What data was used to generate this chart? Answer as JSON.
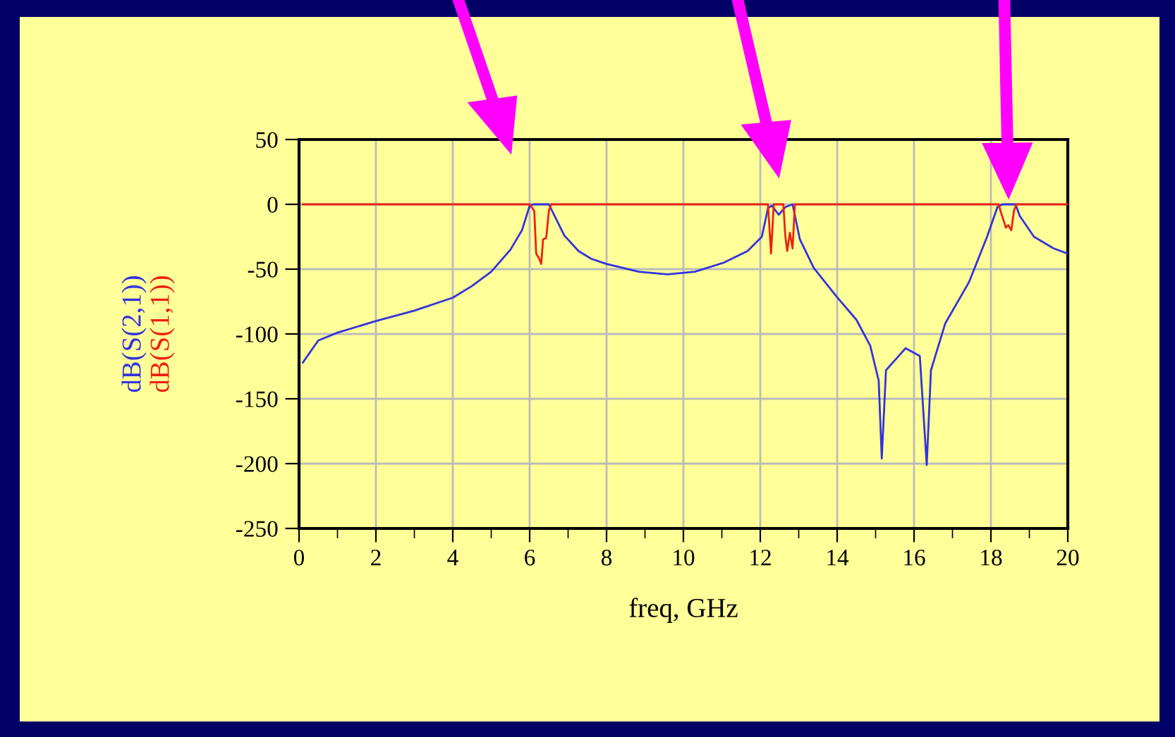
{
  "chart_data": {
    "type": "line",
    "xlabel": "freq, GHz",
    "xlim": [
      0,
      20
    ],
    "ylim": [
      -250,
      50
    ],
    "xticks": [
      0,
      {
        "value": 1,
        "label": null
      },
      2,
      {
        "value": 3,
        "label": null
      },
      4,
      {
        "value": 5,
        "label": null
      },
      6,
      {
        "value": 7,
        "label": null
      },
      8,
      {
        "value": 9,
        "label": null
      },
      10,
      {
        "value": 11,
        "label": null
      },
      12,
      {
        "value": 13,
        "label": null
      },
      14,
      {
        "value": 15,
        "label": null
      },
      16,
      {
        "value": 17,
        "label": null
      },
      18,
      {
        "value": 19,
        "label": null
      },
      20
    ],
    "yticks": [
      -250,
      -200,
      -150,
      -100,
      -50,
      0,
      50
    ],
    "grid": true,
    "legend": false,
    "marker": "none",
    "line_style": "solid",
    "series": [
      {
        "name": "dB(S(2,1))",
        "color": "#3333dd",
        "x": [
          0.1,
          0.5,
          1,
          2,
          3,
          4,
          4.5,
          5,
          5.5,
          5.8,
          6.0,
          6.1,
          6.5,
          6.65,
          6.9,
          7.27,
          7.6,
          8.0,
          8.84,
          9.58,
          10.3,
          11.05,
          11.67,
          12.04,
          12.2,
          12.3,
          12.48,
          12.66,
          12.84,
          13.03,
          13.39,
          13.98,
          14.5,
          14.86,
          15.08,
          15.16,
          15.27,
          15.78,
          16.15,
          16.33,
          16.44,
          16.81,
          17.43,
          17.9,
          18.17,
          18.3,
          18.64,
          18.75,
          19.12,
          19.63,
          20
        ],
        "values": [
          -122,
          -105,
          -99,
          -90,
          -82,
          -72,
          -63,
          -52,
          -35,
          -20,
          -1,
          0,
          0,
          -9,
          -24,
          -36,
          -42,
          -46,
          -52,
          -54,
          -52,
          -45,
          -36,
          -25,
          -3,
          -1,
          -8,
          -2,
          0,
          -27,
          -49,
          -71,
          -89,
          -109,
          -136,
          -196,
          -128,
          -111,
          -117,
          -201,
          -128,
          -92,
          -60,
          -25,
          -2,
          0,
          0,
          -9,
          -25,
          -34,
          -38
        ]
      },
      {
        "name": "dB(S(1,1))",
        "color": "#ee2211",
        "x": [
          0.1,
          6.0,
          6.12,
          6.17,
          6.25,
          6.3,
          6.35,
          6.43,
          6.5,
          6.56,
          12.2,
          12.28,
          12.35,
          12.6,
          12.65,
          12.7,
          12.77,
          12.84,
          12.9,
          18.2,
          18.27,
          18.39,
          18.45,
          18.53,
          18.6,
          18.66,
          20
        ],
        "values": [
          0,
          0,
          -5,
          -38,
          -42,
          -46,
          -27,
          -26,
          -5,
          0,
          0,
          -38,
          0,
          0,
          -24,
          -36,
          -22,
          -34,
          0,
          0,
          -7,
          -18,
          -16,
          -20,
          -5,
          0,
          0
        ]
      }
    ]
  }
}
